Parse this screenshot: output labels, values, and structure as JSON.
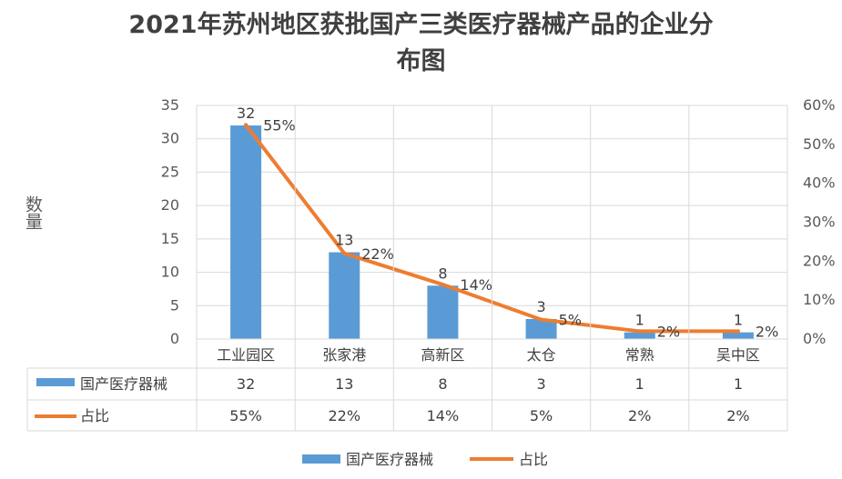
{
  "chart_data": {
    "type": "bar",
    "title_lines": [
      "2021年苏州地区获批国产三类医疗器械产品的企业分",
      "布图"
    ],
    "ylabel": "数量",
    "categories": [
      "工业园区",
      "张家港",
      "高新区",
      "太仓",
      "常熟",
      "吴中区"
    ],
    "y_ticks": [
      "0",
      "5",
      "10",
      "15",
      "20",
      "25",
      "30",
      "35"
    ],
    "y2_ticks": [
      "0%",
      "10%",
      "20%",
      "30%",
      "40%",
      "50%",
      "60%"
    ],
    "ylim": [
      0,
      35
    ],
    "y2lim": [
      0,
      0.6
    ],
    "grid": true,
    "legend_position": "bottom",
    "series": [
      {
        "name": "国产医疗器械",
        "type": "bar",
        "axis": "left",
        "color": "#5B9BD5",
        "values": [
          32,
          13,
          8,
          3,
          1,
          1
        ],
        "labels": [
          "32",
          "13",
          "8",
          "3",
          "1",
          "1"
        ]
      },
      {
        "name": "占比",
        "type": "line",
        "axis": "right",
        "color": "#ED7D31",
        "values": [
          0.55,
          0.22,
          0.14,
          0.05,
          0.02,
          0.02
        ],
        "labels": [
          "55%",
          "22%",
          "14%",
          "5%",
          "2%",
          "2%"
        ]
      }
    ]
  }
}
